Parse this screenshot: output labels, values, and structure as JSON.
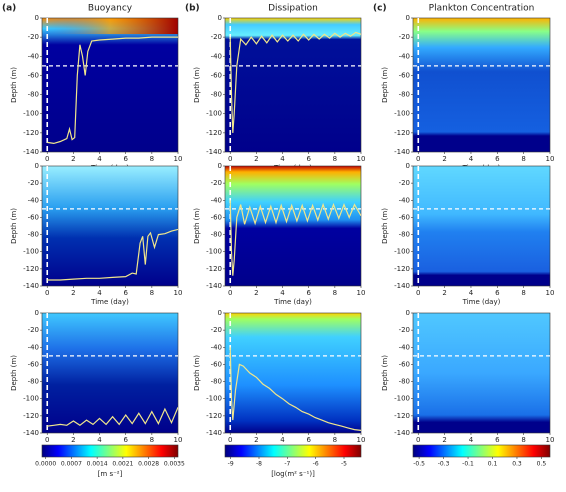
{
  "chart_data": [
    {
      "type": "heatmap",
      "panel_label": "(a)",
      "title": "Buoyancy",
      "xlabel": "Time (day)",
      "ylabel": "Depth (m)",
      "xlim": [
        -0.4,
        10
      ],
      "ylim": [
        -140,
        0
      ],
      "xticks": [
        0,
        2,
        4,
        6,
        8,
        10
      ],
      "yticks": [
        0,
        -20,
        -40,
        -60,
        -80,
        -100,
        -120,
        -140
      ],
      "hlines": [
        -50
      ],
      "vlines": [
        0
      ],
      "line": {
        "color": "#f0e68c",
        "x": [
          0,
          0.5,
          1,
          1.5,
          1.7,
          1.9,
          2.1,
          2.3,
          2.5,
          2.7,
          2.9,
          3.1,
          3.4,
          4,
          5,
          6,
          7,
          8,
          9,
          10
        ],
        "values": [
          -130,
          -131,
          -129,
          -126,
          -116,
          -127,
          -125,
          -60,
          -28,
          -40,
          -60,
          -35,
          -24,
          -23,
          -22,
          -21,
          -21,
          -20,
          -20,
          -20
        ]
      }
    },
    {
      "type": "heatmap",
      "panel_label": "(b)",
      "title": "Dissipation",
      "xlabel": "Time (day)",
      "ylabel": "Depth (m)",
      "xlim": [
        -0.4,
        10
      ],
      "ylim": [
        -140,
        0
      ],
      "xticks": [
        0,
        2,
        4,
        6,
        8,
        10
      ],
      "yticks": [
        0,
        -20,
        -40,
        -60,
        -80,
        -100,
        -120,
        -140
      ],
      "hlines": [
        -50
      ],
      "vlines": [
        0
      ],
      "line": {
        "color": "#f0e68c",
        "x": [
          0,
          0.1,
          0.2,
          0.3,
          0.5,
          0.8,
          1.2,
          1.6,
          2,
          2.4,
          2.8,
          3.2,
          3.6,
          4,
          4.4,
          4.8,
          5.2,
          5.6,
          6,
          6.4,
          6.8,
          7.2,
          7.6,
          8,
          8.4,
          8.8,
          9.2,
          9.6,
          10
        ],
        "values": [
          -20,
          -80,
          -120,
          -100,
          -50,
          -22,
          -28,
          -20,
          -27,
          -19,
          -26,
          -18,
          -25,
          -18,
          -24,
          -18,
          -24,
          -17,
          -23,
          -17,
          -22,
          -17,
          -21,
          -16,
          -20,
          -16,
          -19,
          -15,
          -17
        ]
      }
    },
    {
      "type": "heatmap",
      "panel_label": "(c)",
      "title": "Plankton Concentration",
      "xlabel": "Time (day)",
      "ylabel": "Depth (m)",
      "xlim": [
        -0.4,
        10
      ],
      "ylim": [
        -140,
        0
      ],
      "xticks": [
        0,
        2,
        4,
        6,
        8,
        10
      ],
      "yticks": [
        0,
        -20,
        -40,
        -60,
        -80,
        -100,
        -120,
        -140
      ],
      "hlines": [
        -50
      ],
      "vlines": [
        0
      ]
    },
    {
      "type": "heatmap",
      "xlabel": "Time (day)",
      "ylabel": "Depth (m)",
      "xlim": [
        -0.4,
        10
      ],
      "ylim": [
        -140,
        0
      ],
      "xticks": [
        0,
        2,
        4,
        6,
        8,
        10
      ],
      "yticks": [
        0,
        -20,
        -40,
        -60,
        -80,
        -100,
        -120,
        -140
      ],
      "hlines": [
        -50
      ],
      "vlines": [
        0
      ],
      "line": {
        "color": "#f0e68c",
        "x": [
          0,
          1,
          2,
          3,
          4,
          5,
          6,
          6.5,
          6.8,
          7.1,
          7.3,
          7.5,
          7.7,
          7.9,
          8.2,
          8.5,
          9,
          9.5,
          10
        ],
        "values": [
          -133,
          -133,
          -132,
          -131,
          -131,
          -130,
          -129,
          -125,
          -126,
          -90,
          -82,
          -115,
          -82,
          -78,
          -95,
          -80,
          -79,
          -76,
          -74
        ]
      }
    },
    {
      "type": "heatmap",
      "xlabel": "Time (day)",
      "ylabel": "Depth (m)",
      "xlim": [
        -0.4,
        10
      ],
      "ylim": [
        -140,
        0
      ],
      "xticks": [
        0,
        2,
        4,
        6,
        8,
        10
      ],
      "yticks": [
        0,
        -20,
        -40,
        -60,
        -80,
        -100,
        -120,
        -140
      ],
      "hlines": [
        -50
      ],
      "vlines": [
        0
      ],
      "line": {
        "color": "#f0e68c",
        "x": [
          0,
          0.1,
          0.2,
          0.3,
          0.5,
          0.8,
          1.1,
          1.5,
          1.9,
          2.3,
          2.7,
          3.1,
          3.5,
          3.9,
          4.3,
          4.7,
          5.1,
          5.5,
          5.9,
          6.3,
          6.7,
          7.1,
          7.5,
          7.9,
          8.3,
          8.7,
          9.1,
          9.5,
          10
        ],
        "values": [
          -40,
          -100,
          -128,
          -110,
          -60,
          -45,
          -68,
          -48,
          -67,
          -47,
          -66,
          -47,
          -66,
          -46,
          -65,
          -46,
          -64,
          -46,
          -64,
          -46,
          -63,
          -45,
          -62,
          -45,
          -61,
          -45,
          -60,
          -45,
          -58
        ]
      }
    },
    {
      "type": "heatmap",
      "xlabel": "Time (day)",
      "ylabel": "Depth (m)",
      "xlim": [
        -0.4,
        10
      ],
      "ylim": [
        -140,
        0
      ],
      "xticks": [
        0,
        2,
        4,
        6,
        8,
        10
      ],
      "yticks": [
        0,
        -20,
        -40,
        -60,
        -80,
        -100,
        -120,
        -140
      ],
      "hlines": [
        -50
      ],
      "vlines": [
        0
      ]
    },
    {
      "type": "heatmap",
      "xlabel": "Time (day)",
      "ylabel": "Depth (m)",
      "xlim": [
        -0.4,
        10
      ],
      "ylim": [
        -140,
        0
      ],
      "xticks": [
        0,
        2,
        4,
        6,
        8,
        10
      ],
      "yticks": [
        0,
        -20,
        -40,
        -60,
        -80,
        -100,
        -120,
        -140
      ],
      "hlines": [
        -50
      ],
      "vlines": [
        0
      ],
      "line": {
        "color": "#f0e68c",
        "x": [
          0,
          0.5,
          1,
          1.5,
          2,
          2.5,
          3,
          3.5,
          4,
          4.5,
          5,
          5.5,
          6,
          6.5,
          7,
          7.5,
          8,
          8.5,
          9,
          9.5,
          10
        ],
        "values": [
          -132,
          -131,
          -130,
          -131,
          -126,
          -131,
          -125,
          -130,
          -123,
          -130,
          -121,
          -130,
          -119,
          -129,
          -117,
          -129,
          -115,
          -129,
          -112,
          -128,
          -110
        ]
      },
      "colorbar": {
        "lim": [
          -0.0001,
          0.0036
        ],
        "label": "[m s⁻²]",
        "ticks": [
          {
            "value": 0,
            "label": "0.0000"
          },
          {
            "value": 0.0007,
            "label": "0.0007"
          },
          {
            "value": 0.0014,
            "label": "0.0014"
          },
          {
            "value": 0.0021,
            "label": "0.0021"
          },
          {
            "value": 0.0028,
            "label": "0.0028"
          },
          {
            "value": 0.0035,
            "label": "0.0035"
          }
        ]
      }
    },
    {
      "type": "heatmap",
      "xlabel": "Time (day)",
      "ylabel": "Depth (m)",
      "xlim": [
        -0.4,
        10
      ],
      "ylim": [
        -140,
        0
      ],
      "xticks": [
        0,
        2,
        4,
        6,
        8,
        10
      ],
      "yticks": [
        0,
        -20,
        -40,
        -60,
        -80,
        -100,
        -120,
        -140
      ],
      "hlines": [
        -50
      ],
      "vlines": [
        0
      ],
      "line": {
        "color": "#f0e68c",
        "x": [
          0,
          0.1,
          0.2,
          0.4,
          0.7,
          1,
          1.5,
          2,
          2.5,
          3,
          3.5,
          4,
          4.5,
          5,
          5.5,
          6,
          6.5,
          7,
          7.5,
          8,
          8.5,
          9,
          9.5,
          10
        ],
        "values": [
          -40,
          -100,
          -125,
          -90,
          -60,
          -62,
          -70,
          -75,
          -83,
          -88,
          -95,
          -100,
          -106,
          -110,
          -115,
          -118,
          -122,
          -125,
          -128,
          -130,
          -132,
          -134,
          -136,
          -137
        ]
      },
      "colorbar": {
        "lim": [
          -9.2,
          -4.4
        ],
        "label": "[log(m² s⁻¹)]",
        "ticks": [
          -9,
          -8,
          -7,
          -6,
          -5
        ]
      }
    },
    {
      "type": "heatmap",
      "xlabel": "Time (day)",
      "ylabel": "Depth (m)",
      "xlim": [
        -0.4,
        10
      ],
      "ylim": [
        -140,
        0
      ],
      "xticks": [
        0,
        2,
        4,
        6,
        8,
        10
      ],
      "yticks": [
        0,
        -20,
        -40,
        -60,
        -80,
        -100,
        -120,
        -140
      ],
      "hlines": [
        -50
      ],
      "vlines": [
        0
      ],
      "colorbar": {
        "lim": [
          -0.55,
          0.57
        ],
        "ticks": [
          -0.5,
          -0.3,
          -0.1,
          0.1,
          0.3,
          0.5
        ]
      }
    }
  ]
}
